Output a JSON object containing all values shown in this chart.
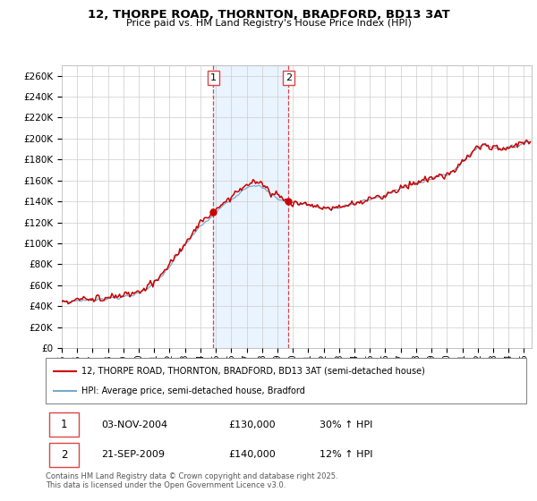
{
  "title_line1": "12, THORPE ROAD, THORNTON, BRADFORD, BD13 3AT",
  "title_line2": "Price paid vs. HM Land Registry's House Price Index (HPI)",
  "background_color": "#ffffff",
  "plot_bg_color": "#ffffff",
  "grid_color": "#cccccc",
  "hpi_color": "#77aacc",
  "hpi_fill_color": "#ddeeff",
  "price_color": "#cc0000",
  "vline_color": "#dd4444",
  "ylim_max": 270000,
  "ylim_min": 0,
  "sale1_year": 2004.84,
  "sale1_price": 130000,
  "sale2_year": 2009.72,
  "sale2_price": 140000,
  "legend_entry1": "12, THORPE ROAD, THORNTON, BRADFORD, BD13 3AT (semi-detached house)",
  "legend_entry2": "HPI: Average price, semi-detached house, Bradford",
  "transaction1_label": "1",
  "transaction1_date": "03-NOV-2004",
  "transaction1_price_str": "£130,000",
  "transaction1_hpi": "30% ↑ HPI",
  "transaction2_label": "2",
  "transaction2_date": "21-SEP-2009",
  "transaction2_price_str": "£140,000",
  "transaction2_hpi": "12% ↑ HPI",
  "footer": "Contains HM Land Registry data © Crown copyright and database right 2025.\nThis data is licensed under the Open Government Licence v3.0."
}
